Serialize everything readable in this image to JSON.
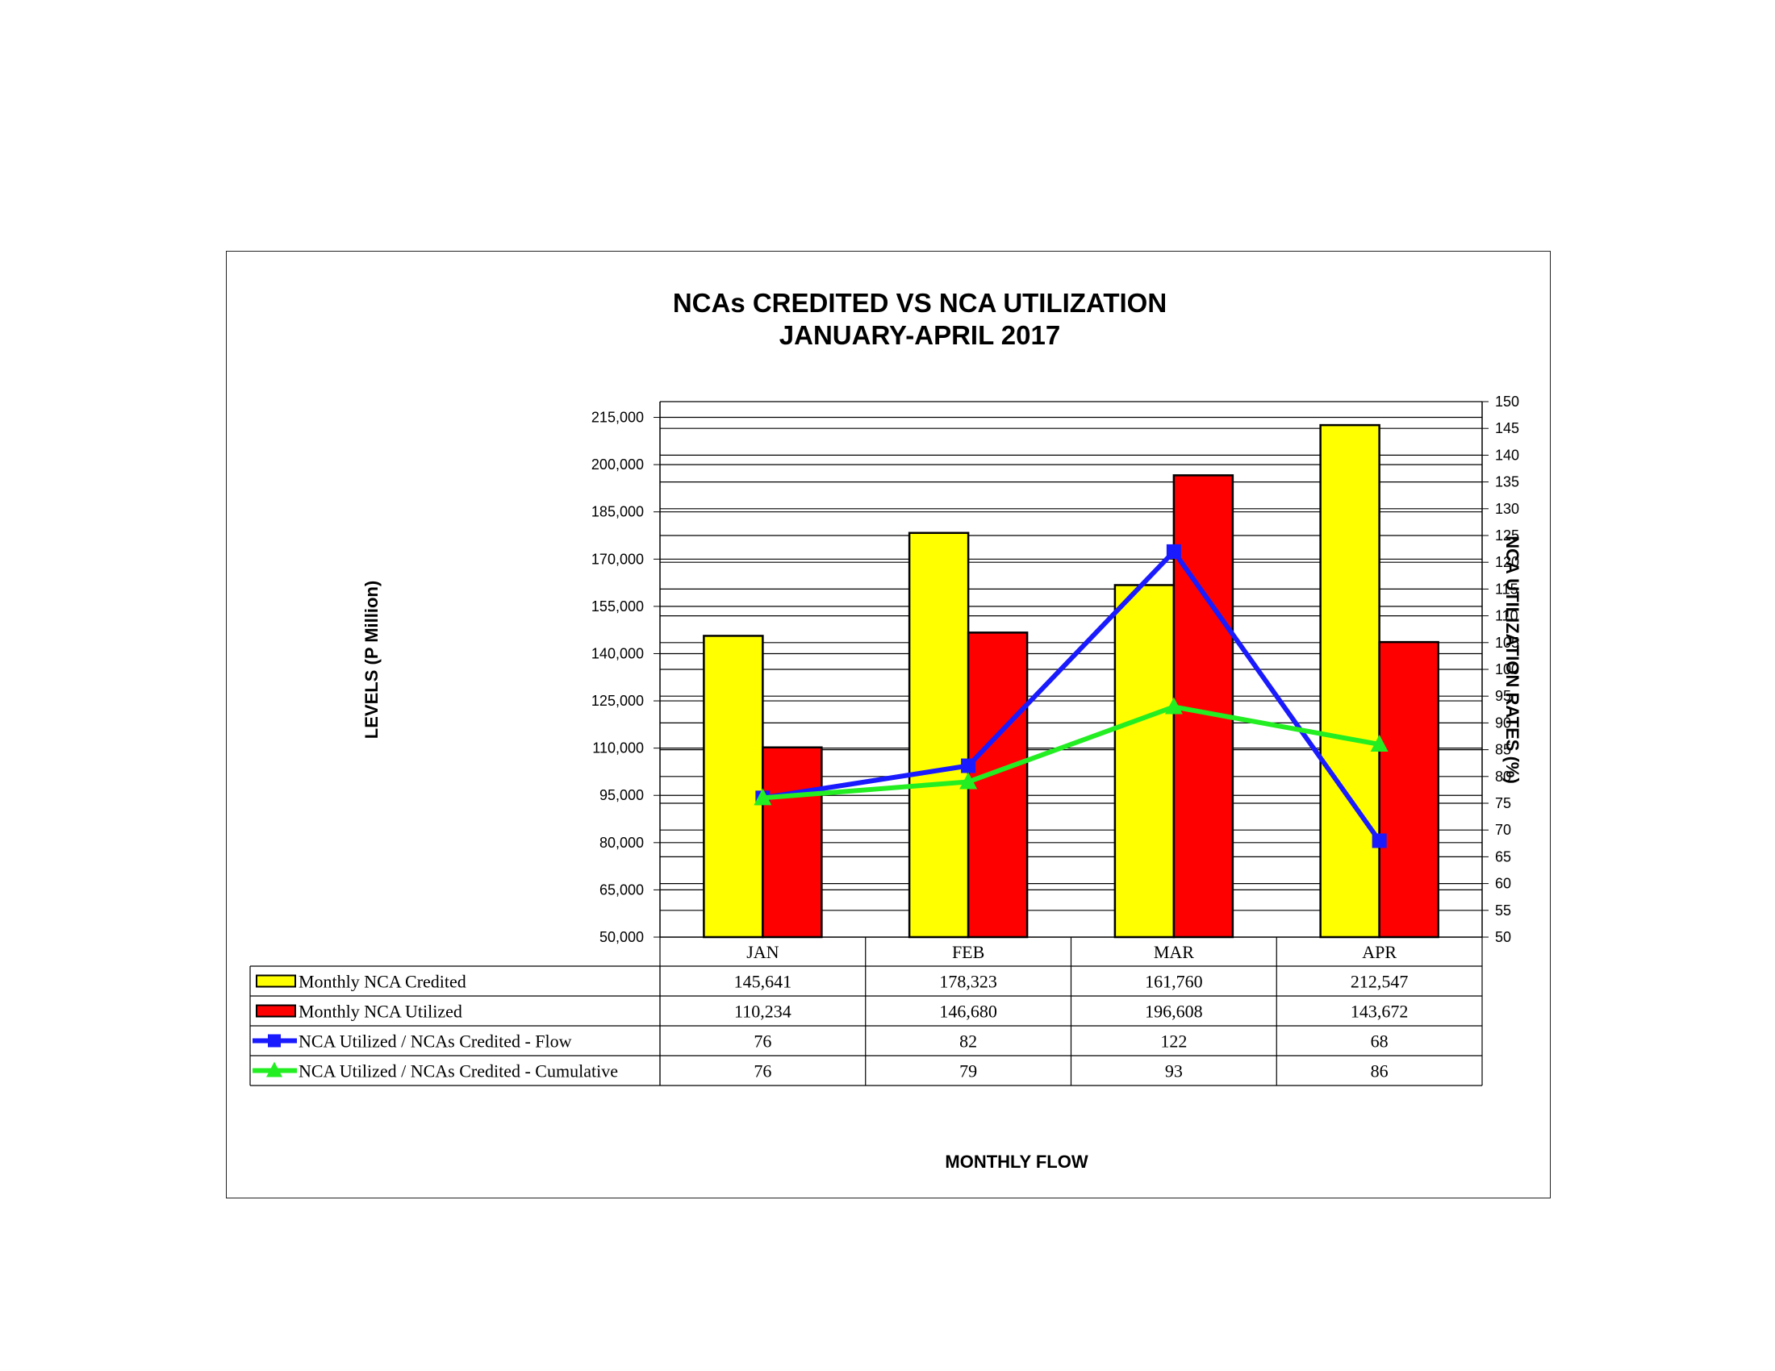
{
  "chart_data": {
    "type": "bar",
    "title": [
      "NCAs CREDITED VS NCA UTILIZATION",
      "JANUARY-APRIL 2017"
    ],
    "xlabel": "MONTHLY FLOW",
    "ylabel": "LEVELS (P Million)",
    "y2label": "NCA UTILIZATION RATES (%)",
    "categories": [
      "JAN",
      "FEB",
      "MAR",
      "APR"
    ],
    "ylim": [
      50000,
      220000
    ],
    "yticks": [
      "50,000",
      "65,000",
      "80,000",
      "95,000",
      "110,000",
      "125,000",
      "140,000",
      "155,000",
      "170,000",
      "185,000",
      "200,000",
      "215,000"
    ],
    "y2lim": [
      50,
      150
    ],
    "y2ticks": [
      "50",
      "55",
      "60",
      "65",
      "70",
      "75",
      "80",
      "85",
      "90",
      "95",
      "100",
      "105",
      "110",
      "115",
      "120",
      "125",
      "130",
      "135",
      "140",
      "145",
      "150"
    ],
    "grid": true,
    "legend": "data-table",
    "series": [
      {
        "name": "Monthly NCA Credited",
        "kind": "bar",
        "axis": "left",
        "color": "#ffff00",
        "values": [
          145641,
          178323,
          161760,
          212547
        ],
        "labels": [
          "145,641",
          "178,323",
          "161,760",
          "212,547"
        ]
      },
      {
        "name": "Monthly NCA Utilized",
        "kind": "bar",
        "axis": "left",
        "color": "#ff0000",
        "values": [
          110234,
          146680,
          196608,
          143672
        ],
        "labels": [
          "110,234",
          "146,680",
          "196,608",
          "143,672"
        ]
      },
      {
        "name": "NCA Utilized / NCAs Credited - Flow",
        "kind": "line",
        "marker": "square",
        "axis": "right",
        "color": "#1a1aff",
        "values": [
          76,
          82,
          122,
          68
        ],
        "labels": [
          "76",
          "82",
          "122",
          "68"
        ]
      },
      {
        "name": "NCA Utilized / NCAs Credited - Cumulative",
        "kind": "line",
        "marker": "triangle",
        "axis": "right",
        "color": "#22ee22",
        "values": [
          76,
          79,
          93,
          86
        ],
        "labels": [
          "76",
          "79",
          "93",
          "86"
        ]
      }
    ]
  }
}
